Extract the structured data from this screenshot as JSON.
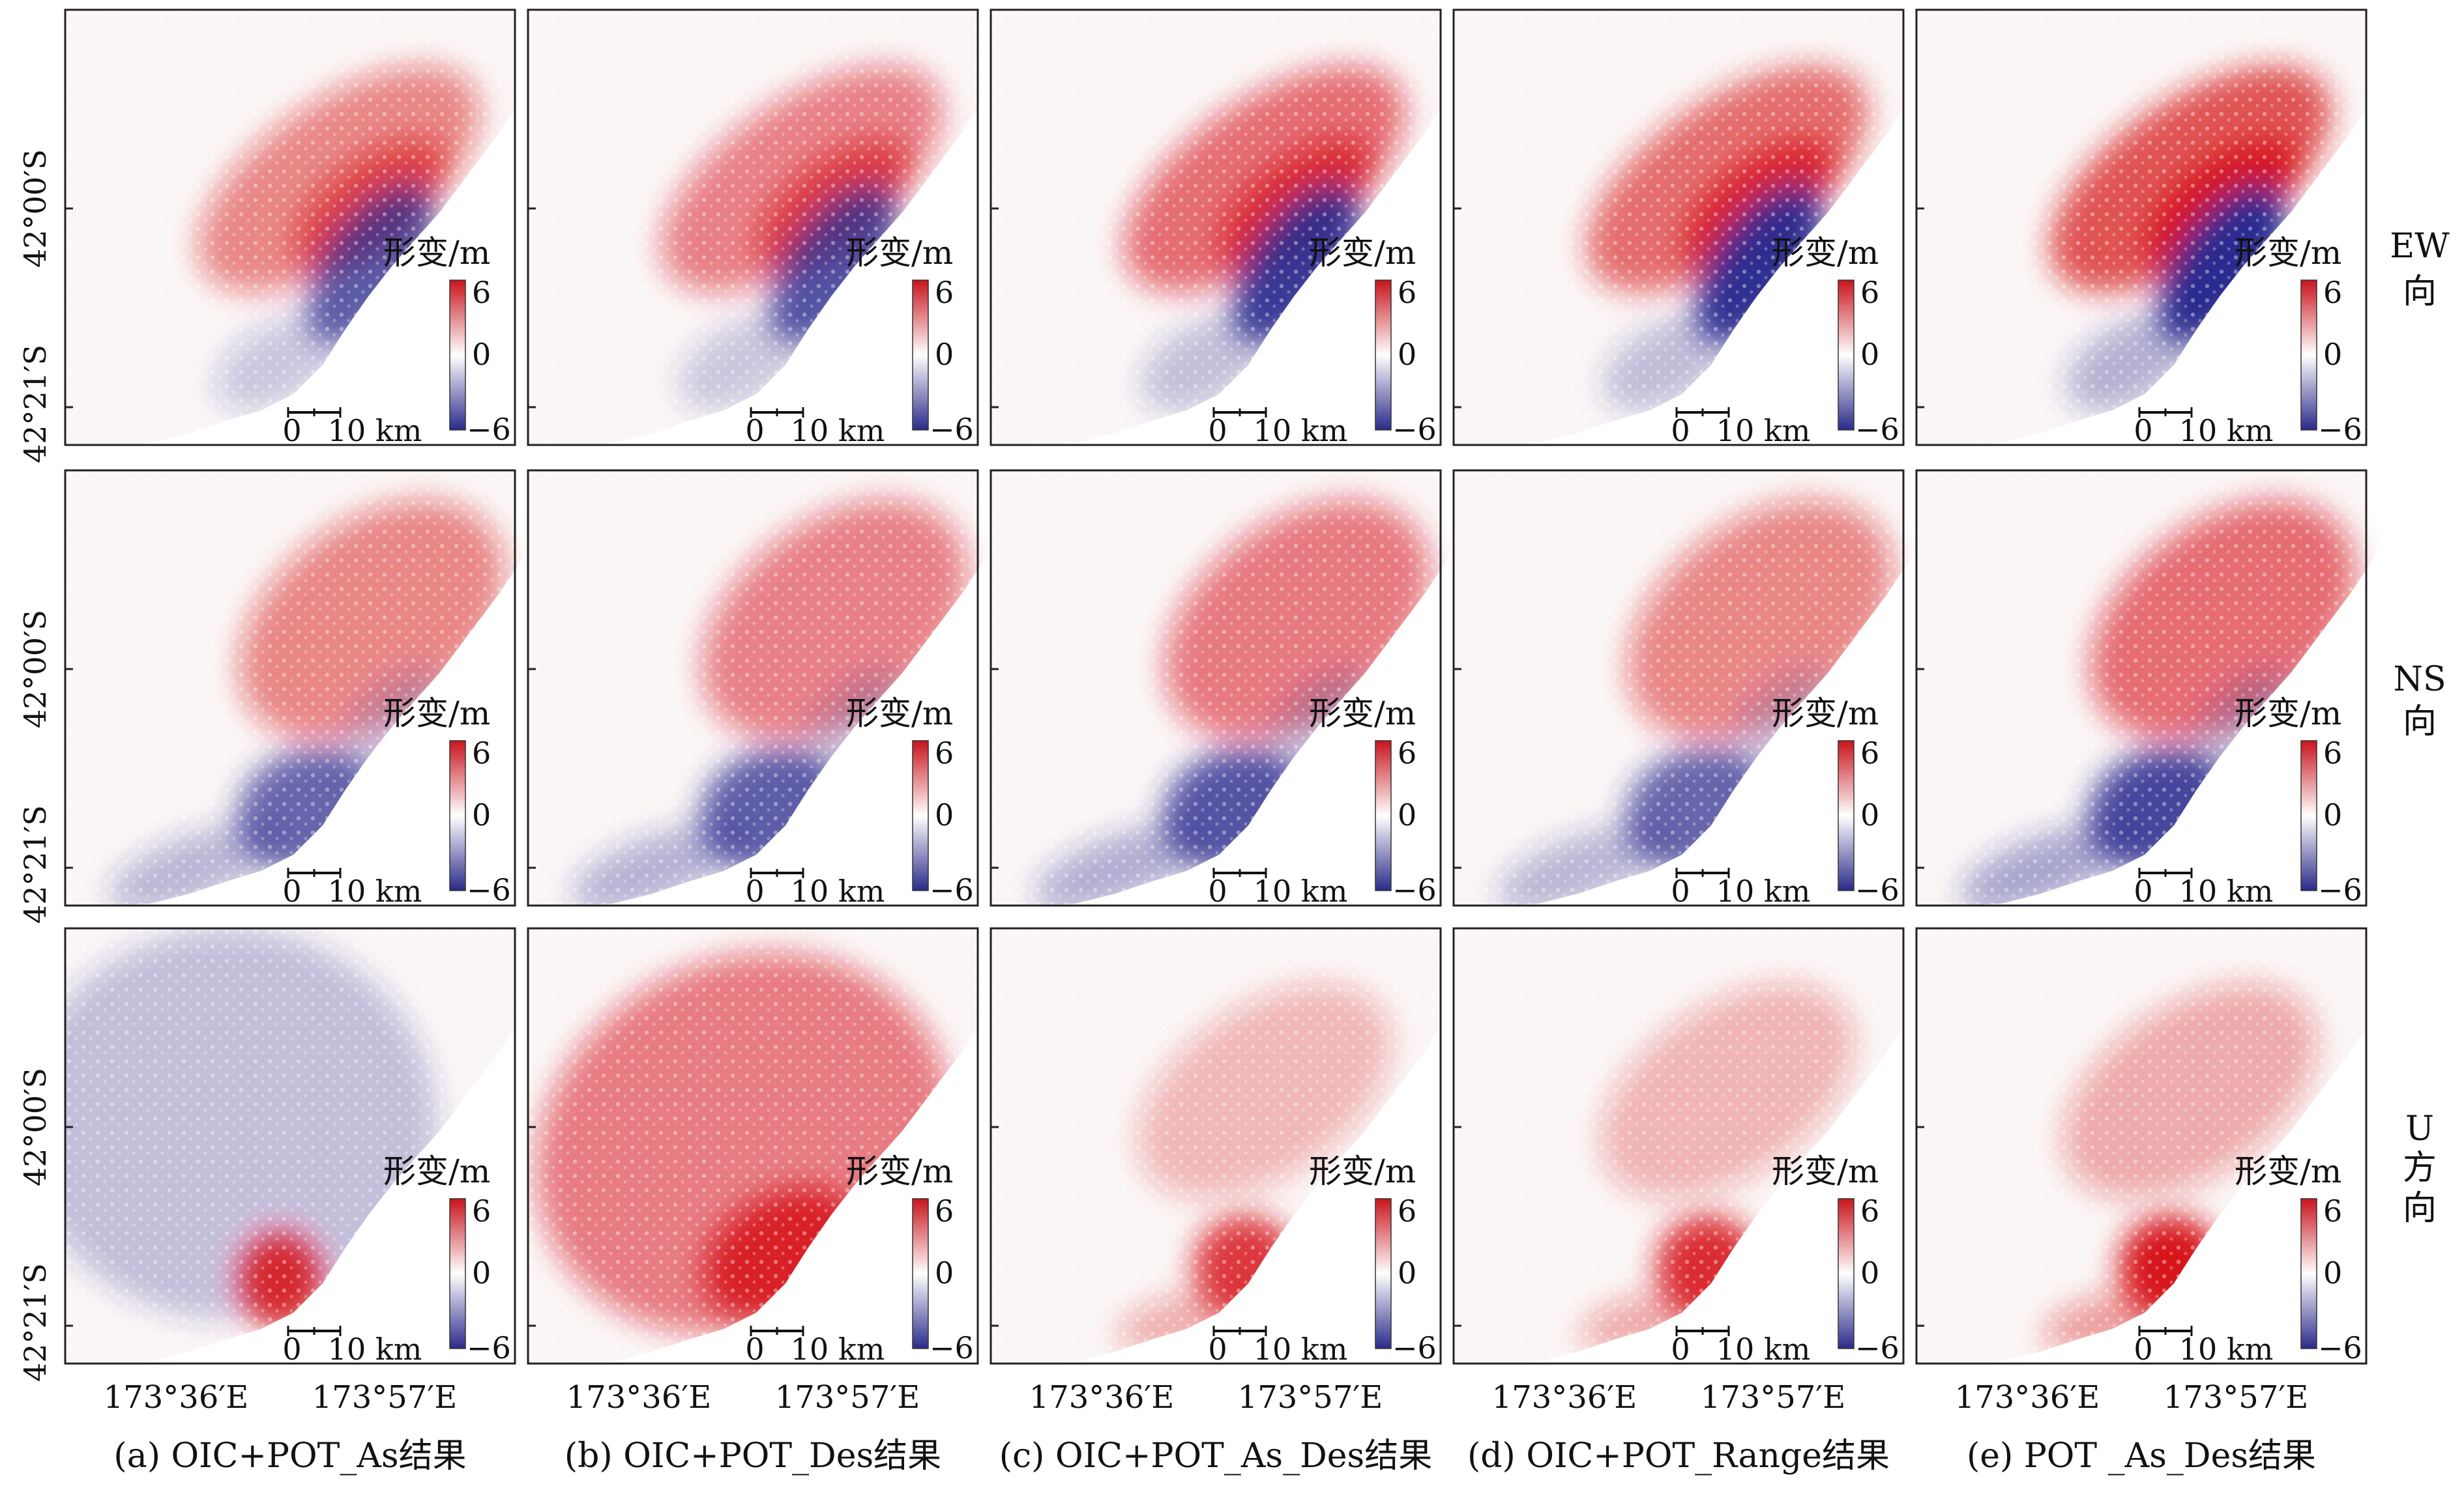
{
  "figure": {
    "columns": [
      {
        "caption": "(a) OIC+POT_As结果"
      },
      {
        "caption": "(b) OIC+POT_Des结果"
      },
      {
        "caption": "(c) OIC+POT_As_Des结果"
      },
      {
        "caption": "(d) OIC+POT_Range结果"
      },
      {
        "caption": "(e) POT _As_Des结果"
      }
    ],
    "rows": [
      {
        "label_lines": [
          "EW",
          "向"
        ],
        "component": "EW"
      },
      {
        "label_lines": [
          "NS",
          "向"
        ],
        "component": "NS"
      },
      {
        "label_lines": [
          "U",
          "方",
          "向"
        ],
        "component": "U"
      }
    ],
    "lat_ticks": [
      "42°00′S",
      "42°21′S"
    ],
    "lon_ticks": [
      "173°36′E",
      "173°57′E"
    ],
    "colorbar": {
      "title": "形变/m",
      "max_label": "6",
      "mid_label": "0",
      "min_label": "−6",
      "range": [
        -6,
        6
      ]
    },
    "scalebar": {
      "zero_label": "0",
      "length_label": "10 km"
    },
    "colors": {
      "positive": "#d7191c",
      "negative": "#2c2c8f",
      "neutral": "#ffffff"
    },
    "patterns": [
      [
        "ew_a",
        "ew_b",
        "ew_c",
        "ew_d",
        "ew_e"
      ],
      [
        "ns_a",
        "ns_b",
        "ns_c",
        "ns_d",
        "ns_e"
      ],
      [
        "u_a",
        "u_b",
        "u_c",
        "u_d",
        "u_e"
      ]
    ]
  }
}
